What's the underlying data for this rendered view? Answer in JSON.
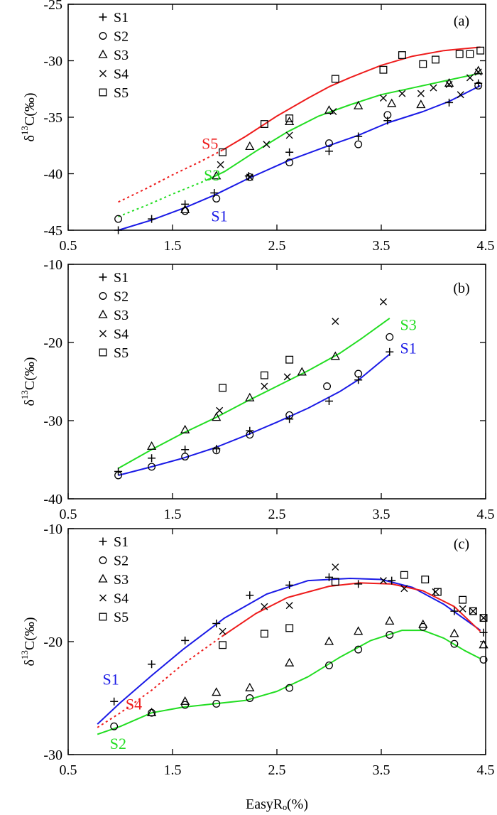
{
  "chart_data": [
    {
      "type": "scatter",
      "panel_label": "(a)",
      "ylabel_main": "δ",
      "ylabel_sup": "13",
      "ylabel_rest": "C(‰)",
      "xlim": [
        0.5,
        4.5
      ],
      "ylim": [
        -45,
        -25
      ],
      "xticks": [
        "0.5",
        "1.5",
        "2.5",
        "3.5",
        "4.5"
      ],
      "yticks": [
        "-25",
        "-30",
        "-35",
        "-40",
        "-45"
      ],
      "grid": false,
      "legend_position": "top-left",
      "series": [
        {
          "name": "S1",
          "marker": "plus",
          "x": [
            0.98,
            1.3,
            1.62,
            1.9,
            2.23,
            2.62,
            3.0,
            3.28,
            3.56,
            4.15,
            4.43
          ],
          "y": [
            -45.0,
            -44.0,
            -42.7,
            -41.7,
            -40.2,
            -38.1,
            -38.0,
            -36.7,
            -35.3,
            -33.7,
            -32.0
          ]
        },
        {
          "name": "S2",
          "marker": "circle",
          "x": [
            0.98,
            1.62,
            1.92,
            2.24,
            2.62,
            3.0,
            3.28,
            3.56,
            4.43
          ],
          "y": [
            -44.0,
            -43.3,
            -42.2,
            -40.3,
            -39.0,
            -37.3,
            -37.4,
            -34.8,
            -32.2
          ]
        },
        {
          "name": "S3",
          "marker": "triangle",
          "x": [
            1.62,
            1.92,
            2.24,
            2.62,
            3.0,
            3.28,
            3.6,
            3.88,
            4.15,
            4.43
          ],
          "y": [
            -43.2,
            -40.2,
            -37.6,
            -35.4,
            -34.4,
            -34.0,
            -33.8,
            -33.9,
            -32.0,
            -30.9
          ]
        },
        {
          "name": "S4",
          "marker": "cross",
          "x": [
            1.96,
            2.24,
            2.4,
            2.62,
            3.04,
            3.52,
            3.7,
            3.88,
            4.0,
            4.15,
            4.26,
            4.35,
            4.43
          ],
          "y": [
            -39.2,
            -40.3,
            -37.4,
            -36.6,
            -34.5,
            -33.3,
            -32.9,
            -32.9,
            -32.4,
            -32.1,
            -33.0,
            -31.5,
            -31.0
          ]
        },
        {
          "name": "S5",
          "marker": "square",
          "x": [
            1.98,
            2.38,
            2.62,
            3.06,
            3.52,
            3.7,
            3.9,
            4.02,
            4.25,
            4.35,
            4.45
          ],
          "y": [
            -38.1,
            -35.6,
            -35.1,
            -31.6,
            -30.8,
            -29.5,
            -30.3,
            -29.9,
            -29.4,
            -29.4,
            -29.1
          ]
        }
      ],
      "curves": [
        {
          "label": "S5",
          "color": "#ee1c1c",
          "dashed_to": 1.98,
          "x": [
            0.98,
            1.25,
            1.5,
            1.75,
            1.98,
            2.2,
            2.5,
            2.8,
            3.0,
            3.2,
            3.5,
            3.8,
            4.1,
            4.45
          ],
          "y": [
            -42.5,
            -41.3,
            -40.1,
            -39.0,
            -37.9,
            -36.7,
            -34.9,
            -33.3,
            -32.3,
            -31.5,
            -30.4,
            -29.6,
            -29.1,
            -28.8
          ]
        },
        {
          "label": "S3",
          "color": "#22dd22",
          "dashed_to": 1.82,
          "x": [
            0.98,
            1.25,
            1.5,
            1.82,
            2.0,
            2.3,
            2.6,
            2.9,
            3.2,
            3.5,
            3.8,
            4.1,
            4.45
          ],
          "y": [
            -43.8,
            -42.8,
            -41.8,
            -40.6,
            -39.8,
            -38.0,
            -36.3,
            -34.9,
            -33.9,
            -33.0,
            -32.4,
            -31.8,
            -31.1
          ]
        },
        {
          "label": "S1",
          "color": "#1a1ae6",
          "dashed_to": null,
          "x": [
            0.98,
            1.3,
            1.62,
            1.9,
            2.23,
            2.62,
            3.0,
            3.28,
            3.56,
            3.9,
            4.15,
            4.45
          ],
          "y": [
            -45.0,
            -44.1,
            -43.0,
            -41.9,
            -40.4,
            -38.8,
            -37.5,
            -36.6,
            -35.5,
            -34.5,
            -33.6,
            -32.2
          ]
        }
      ],
      "curve_labels": [
        {
          "text": "S5",
          "color": "#ee1c1c",
          "x": 1.78,
          "y": -37.8
        },
        {
          "text": "S3",
          "color": "#22dd22",
          "x": 1.8,
          "y": -40.6
        },
        {
          "text": "S1",
          "color": "#1a1ae6",
          "x": 1.87,
          "y": -44.2
        }
      ]
    },
    {
      "type": "scatter",
      "panel_label": "(b)",
      "ylabel_main": "δ",
      "ylabel_sup": "13",
      "ylabel_rest": "C(‰)",
      "xlim": [
        0.5,
        4.5
      ],
      "ylim": [
        -40,
        -10
      ],
      "xticks": [
        "0.5",
        "1.5",
        "2.5",
        "3.5",
        "4.5"
      ],
      "yticks": [
        "-10",
        "-20",
        "-30",
        "-40"
      ],
      "grid": false,
      "legend_position": "top-left",
      "series": [
        {
          "name": "S1",
          "marker": "plus",
          "x": [
            0.98,
            1.3,
            1.62,
            1.92,
            2.24,
            2.62,
            3.0,
            3.28,
            3.58
          ],
          "y": [
            -36.5,
            -34.8,
            -33.7,
            -33.6,
            -31.3,
            -29.8,
            -27.5,
            -24.8,
            -21.2
          ]
        },
        {
          "name": "S2",
          "marker": "circle",
          "x": [
            0.98,
            1.3,
            1.62,
            1.92,
            2.24,
            2.62,
            2.98,
            3.28,
            3.58
          ],
          "y": [
            -37.0,
            -35.9,
            -34.6,
            -33.8,
            -31.8,
            -29.3,
            -25.6,
            -24.0,
            -19.3
          ]
        },
        {
          "name": "S3",
          "marker": "triangle",
          "x": [
            1.3,
            1.62,
            1.92,
            2.24,
            2.74,
            3.06
          ],
          "y": [
            -33.3,
            -31.2,
            -29.6,
            -27.1,
            -23.8,
            -21.8
          ]
        },
        {
          "name": "S4",
          "marker": "cross",
          "x": [
            1.95,
            2.38,
            2.6,
            3.06,
            3.52
          ],
          "y": [
            -28.7,
            -25.6,
            -24.4,
            -17.3,
            -14.8
          ]
        },
        {
          "name": "S5",
          "marker": "square",
          "x": [
            1.98,
            2.38,
            2.62
          ],
          "y": [
            -25.8,
            -24.2,
            -22.2
          ]
        }
      ],
      "curves": [
        {
          "label": "S3",
          "color": "#22dd22",
          "dashed_to": null,
          "x": [
            0.98,
            1.3,
            1.6,
            1.9,
            2.2,
            2.5,
            2.8,
            3.1,
            3.3,
            3.58
          ],
          "y": [
            -36.1,
            -33.7,
            -31.6,
            -29.7,
            -27.6,
            -25.6,
            -23.6,
            -21.4,
            -19.6,
            -16.9
          ]
        },
        {
          "label": "S1",
          "color": "#1a1ae6",
          "dashed_to": null,
          "x": [
            0.98,
            1.3,
            1.6,
            1.9,
            2.2,
            2.5,
            2.8,
            3.1,
            3.3,
            3.58
          ],
          "y": [
            -37.0,
            -35.9,
            -34.8,
            -33.5,
            -31.9,
            -30.2,
            -28.4,
            -26.3,
            -24.6,
            -21.5
          ]
        }
      ],
      "curve_labels": [
        {
          "text": "S3",
          "color": "#22dd22",
          "x": 3.68,
          "y": -18.4
        },
        {
          "text": "S1",
          "color": "#1a1ae6",
          "x": 3.68,
          "y": -21.4
        }
      ]
    },
    {
      "type": "scatter",
      "panel_label": "(c)",
      "ylabel_main": "δ",
      "ylabel_sup": "13",
      "ylabel_rest": "C(‰)",
      "xlabel": "EasyRₒ(%)",
      "xlim": [
        0.5,
        4.5
      ],
      "ylim": [
        -30,
        -10
      ],
      "xticks": [
        "0.5",
        "1.5",
        "2.5",
        "3.5",
        "4.5"
      ],
      "yticks": [
        "-10",
        "-20",
        "-30"
      ],
      "grid": false,
      "legend_position": "top-left",
      "series": [
        {
          "name": "S1",
          "marker": "plus",
          "x": [
            0.94,
            1.3,
            1.62,
            1.92,
            2.24,
            2.62,
            3.0,
            3.28,
            3.6,
            4.2,
            4.48
          ],
          "y": [
            -25.3,
            -22.0,
            -19.9,
            -18.4,
            -15.9,
            -15.0,
            -14.3,
            -14.9,
            -14.6,
            -17.3,
            -19.2
          ]
        },
        {
          "name": "S2",
          "marker": "circle",
          "x": [
            0.94,
            1.3,
            1.62,
            1.92,
            2.24,
            2.62,
            3.0,
            3.28,
            3.58,
            3.9,
            4.2,
            4.48
          ],
          "y": [
            -27.5,
            -26.3,
            -25.6,
            -25.5,
            -25.0,
            -24.1,
            -22.1,
            -20.7,
            -19.4,
            -18.7,
            -20.2,
            -21.6
          ]
        },
        {
          "name": "S3",
          "marker": "triangle",
          "x": [
            1.3,
            1.62,
            1.92,
            2.24,
            2.62,
            3.0,
            3.28,
            3.58,
            3.9,
            4.2,
            4.48
          ],
          "y": [
            -26.3,
            -25.3,
            -24.5,
            -24.1,
            -21.9,
            -20.0,
            -19.1,
            -18.2,
            -18.5,
            -19.3,
            -20.3
          ]
        },
        {
          "name": "S4",
          "marker": "cross",
          "x": [
            1.98,
            2.38,
            2.62,
            3.06,
            3.52,
            3.72,
            4.02,
            4.28,
            4.38,
            4.48
          ],
          "y": [
            -19.1,
            -16.9,
            -16.8,
            -13.4,
            -14.6,
            -15.3,
            -15.6,
            -17.1,
            -17.3,
            -17.9
          ]
        },
        {
          "name": "S5",
          "marker": "square",
          "x": [
            1.98,
            2.38,
            2.62,
            3.06,
            3.72,
            3.92,
            4.04,
            4.28,
            4.38,
            4.48
          ],
          "y": [
            -20.3,
            -19.3,
            -18.8,
            -14.7,
            -14.1,
            -14.5,
            -15.6,
            -16.3,
            -17.3,
            -17.9
          ]
        }
      ],
      "curves": [
        {
          "label": "S1",
          "color": "#1a1ae6",
          "dashed_to": null,
          "x": [
            0.78,
            1.0,
            1.3,
            1.6,
            2.0,
            2.4,
            2.8,
            3.2,
            3.5,
            3.8,
            4.1,
            4.45
          ],
          "y": [
            -27.3,
            -25.4,
            -23.0,
            -20.7,
            -17.9,
            -15.8,
            -14.6,
            -14.4,
            -14.5,
            -15.2,
            -16.7,
            -19.0
          ]
        },
        {
          "label": "S4",
          "color": "#ee1c1c",
          "dashed_to": 1.98,
          "x": [
            0.78,
            1.0,
            1.3,
            1.6,
            1.98,
            2.3,
            2.6,
            3.0,
            3.3,
            3.6,
            3.9,
            4.2,
            4.45
          ],
          "y": [
            -27.6,
            -26.3,
            -24.3,
            -22.0,
            -19.5,
            -17.5,
            -16.1,
            -15.1,
            -14.8,
            -14.9,
            -15.5,
            -16.9,
            -19.1
          ]
        },
        {
          "label": "S2",
          "color": "#22dd22",
          "dashed_to": null,
          "x": [
            0.78,
            1.0,
            1.3,
            1.6,
            1.9,
            2.2,
            2.5,
            2.8,
            3.1,
            3.4,
            3.7,
            3.9,
            4.1,
            4.3,
            4.45
          ],
          "y": [
            -28.2,
            -27.5,
            -26.3,
            -25.8,
            -25.5,
            -25.2,
            -24.4,
            -23.1,
            -21.4,
            -19.9,
            -19.0,
            -19.0,
            -19.7,
            -20.8,
            -21.5
          ]
        }
      ],
      "curve_labels": [
        {
          "text": "S1",
          "color": "#1a1ae6",
          "x": 0.83,
          "y": -23.8
        },
        {
          "text": "S4",
          "color": "#ee1c1c",
          "x": 1.05,
          "y": -26.0
        },
        {
          "text": "S2",
          "color": "#22dd22",
          "x": 0.9,
          "y": -29.5
        }
      ]
    }
  ]
}
